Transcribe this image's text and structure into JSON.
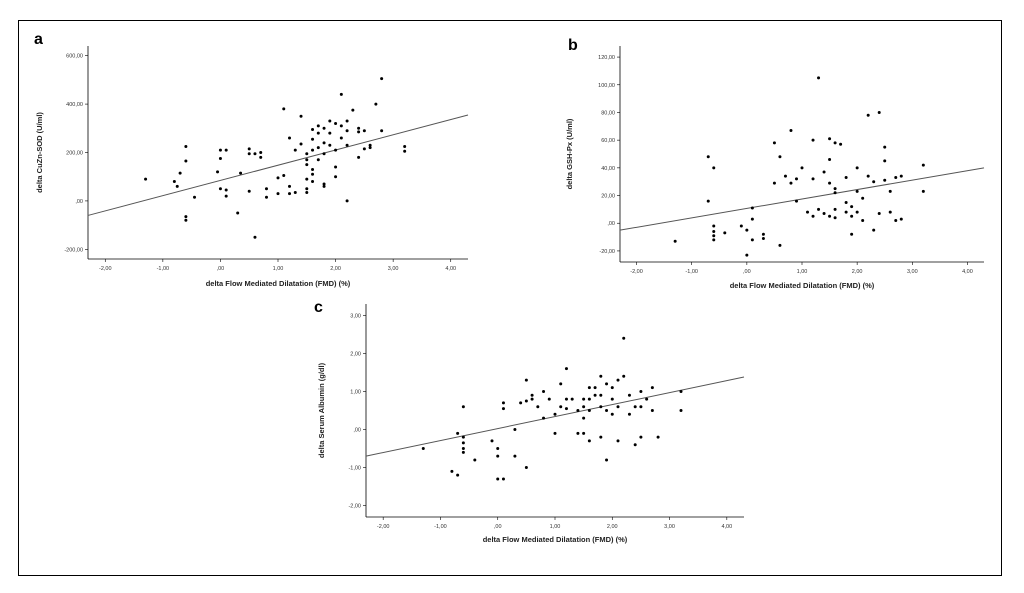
{
  "chart_data": [
    {
      "type": "scatter",
      "panel": "a",
      "xlabel": "delta Flow Mediated Dilatation (FMD) (%)",
      "ylabel": "delta CuZn-SOD (U/ml)",
      "xlim": [
        -2.3,
        4.3
      ],
      "ylim": [
        -240,
        640
      ],
      "xticks": [
        -2,
        -1,
        0,
        1,
        2,
        3,
        4
      ],
      "xtick_labels": [
        "-2,00",
        "-1,00",
        ",00",
        "1,00",
        "2,00",
        "3,00",
        "4,00"
      ],
      "yticks": [
        -200,
        0,
        200,
        400,
        600
      ],
      "ytick_labels": [
        "-200,00",
        ",00",
        "200,00",
        "400,00",
        "600,00"
      ],
      "fit_line": [
        [
          -2.3,
          -60
        ],
        [
          4.3,
          355
        ]
      ],
      "points": [
        [
          -1.3,
          90
        ],
        [
          -0.8,
          80
        ],
        [
          -0.75,
          60
        ],
        [
          -0.7,
          115
        ],
        [
          -0.6,
          225
        ],
        [
          -0.6,
          165
        ],
        [
          -0.6,
          -65
        ],
        [
          -0.6,
          -80
        ],
        [
          -0.45,
          15
        ],
        [
          -0.05,
          120
        ],
        [
          0,
          210
        ],
        [
          0,
          175
        ],
        [
          0,
          50
        ],
        [
          0.1,
          210
        ],
        [
          0.1,
          45
        ],
        [
          0.1,
          20
        ],
        [
          0.3,
          -50
        ],
        [
          0.35,
          115
        ],
        [
          0.5,
          215
        ],
        [
          0.5,
          195
        ],
        [
          0.5,
          40
        ],
        [
          0.6,
          195
        ],
        [
          0.6,
          -150
        ],
        [
          0.7,
          180
        ],
        [
          0.7,
          200
        ],
        [
          0.8,
          50
        ],
        [
          0.8,
          15
        ],
        [
          1.0,
          95
        ],
        [
          1.0,
          30
        ],
        [
          1.1,
          380
        ],
        [
          1.1,
          105
        ],
        [
          1.2,
          260
        ],
        [
          1.2,
          60
        ],
        [
          1.2,
          30
        ],
        [
          1.3,
          210
        ],
        [
          1.3,
          35
        ],
        [
          1.4,
          350
        ],
        [
          1.4,
          235
        ],
        [
          1.5,
          195
        ],
        [
          1.5,
          170
        ],
        [
          1.5,
          150
        ],
        [
          1.5,
          90
        ],
        [
          1.5,
          50
        ],
        [
          1.5,
          35
        ],
        [
          1.6,
          295
        ],
        [
          1.6,
          255
        ],
        [
          1.6,
          210
        ],
        [
          1.6,
          130
        ],
        [
          1.6,
          110
        ],
        [
          1.6,
          80
        ],
        [
          1.7,
          310
        ],
        [
          1.7,
          280
        ],
        [
          1.7,
          220
        ],
        [
          1.7,
          170
        ],
        [
          1.8,
          300
        ],
        [
          1.8,
          240
        ],
        [
          1.8,
          195
        ],
        [
          1.8,
          70
        ],
        [
          1.8,
          60
        ],
        [
          1.9,
          330
        ],
        [
          1.9,
          280
        ],
        [
          1.9,
          230
        ],
        [
          2.0,
          320
        ],
        [
          2.0,
          210
        ],
        [
          2.0,
          140
        ],
        [
          2.0,
          100
        ],
        [
          2.1,
          440
        ],
        [
          2.1,
          310
        ],
        [
          2.1,
          260
        ],
        [
          2.2,
          330
        ],
        [
          2.2,
          290
        ],
        [
          2.2,
          230
        ],
        [
          2.2,
          0
        ],
        [
          2.3,
          375
        ],
        [
          2.4,
          300
        ],
        [
          2.4,
          285
        ],
        [
          2.4,
          180
        ],
        [
          2.5,
          290
        ],
        [
          2.5,
          215
        ],
        [
          2.6,
          230
        ],
        [
          2.6,
          220
        ],
        [
          2.7,
          400
        ],
        [
          2.8,
          505
        ],
        [
          2.8,
          290
        ],
        [
          3.2,
          225
        ],
        [
          3.2,
          205
        ]
      ]
    },
    {
      "type": "scatter",
      "panel": "b",
      "xlabel": "delta Flow Mediated Dilatation (FMD) (%)",
      "ylabel": "delta GSH-Px (U/ml)",
      "xlim": [
        -2.3,
        4.3
      ],
      "ylim": [
        -28,
        128
      ],
      "xticks": [
        -2,
        -1,
        0,
        1,
        2,
        3,
        4
      ],
      "xtick_labels": [
        "-2,00",
        "-1,00",
        ",00",
        "1,00",
        "2,00",
        "3,00",
        "4,00"
      ],
      "yticks": [
        -20,
        0,
        20,
        40,
        60,
        80,
        100,
        120
      ],
      "ytick_labels": [
        "-20,00",
        ",00",
        "20,00",
        "40,00",
        "60,00",
        "80,00",
        "100,00",
        "120,00"
      ],
      "fit_line": [
        [
          -2.3,
          -5
        ],
        [
          4.3,
          40
        ]
      ],
      "points": [
        [
          -1.3,
          -13
        ],
        [
          -0.7,
          48
        ],
        [
          -0.6,
          40
        ],
        [
          -0.7,
          16
        ],
        [
          -0.6,
          -2
        ],
        [
          -0.6,
          -6
        ],
        [
          -0.6,
          -9
        ],
        [
          -0.6,
          -12
        ],
        [
          -0.4,
          -7
        ],
        [
          -0.1,
          -2
        ],
        [
          0,
          -5
        ],
        [
          0,
          -23
        ],
        [
          0.1,
          11
        ],
        [
          0.1,
          3
        ],
        [
          0.1,
          -12
        ],
        [
          0.3,
          -8
        ],
        [
          0.3,
          -11
        ],
        [
          0.5,
          58
        ],
        [
          0.5,
          29
        ],
        [
          0.6,
          48
        ],
        [
          0.6,
          -16
        ],
        [
          0.7,
          34
        ],
        [
          0.8,
          67
        ],
        [
          0.8,
          29
        ],
        [
          0.9,
          32
        ],
        [
          0.9,
          16
        ],
        [
          1.0,
          40
        ],
        [
          1.1,
          8
        ],
        [
          1.2,
          60
        ],
        [
          1.2,
          32
        ],
        [
          1.2,
          5
        ],
        [
          1.3,
          105
        ],
        [
          1.3,
          10
        ],
        [
          1.4,
          37
        ],
        [
          1.4,
          7
        ],
        [
          1.5,
          61
        ],
        [
          1.5,
          46
        ],
        [
          1.5,
          29
        ],
        [
          1.5,
          5
        ],
        [
          1.6,
          58
        ],
        [
          1.6,
          25
        ],
        [
          1.6,
          22
        ],
        [
          1.6,
          10
        ],
        [
          1.6,
          4
        ],
        [
          1.7,
          57
        ],
        [
          1.8,
          33
        ],
        [
          1.8,
          15
        ],
        [
          1.8,
          8
        ],
        [
          1.9,
          12
        ],
        [
          1.9,
          5
        ],
        [
          1.9,
          -8
        ],
        [
          2.0,
          40
        ],
        [
          2.0,
          23
        ],
        [
          2.0,
          8
        ],
        [
          2.1,
          18
        ],
        [
          2.1,
          2
        ],
        [
          2.2,
          78
        ],
        [
          2.2,
          34
        ],
        [
          2.3,
          30
        ],
        [
          2.3,
          -5
        ],
        [
          2.4,
          80
        ],
        [
          2.4,
          7
        ],
        [
          2.5,
          55
        ],
        [
          2.5,
          45
        ],
        [
          2.5,
          31
        ],
        [
          2.6,
          23
        ],
        [
          2.6,
          8
        ],
        [
          2.7,
          33
        ],
        [
          2.7,
          2
        ],
        [
          2.8,
          34
        ],
        [
          2.8,
          3
        ],
        [
          3.2,
          42
        ],
        [
          3.2,
          23
        ]
      ]
    },
    {
      "type": "scatter",
      "panel": "c",
      "xlabel": "delta Flow Mediated Dilatation (FMD) (%)",
      "ylabel": "delta Serum Albumin (g/dl)",
      "xlim": [
        -2.3,
        4.3
      ],
      "ylim": [
        -2.3,
        3.3
      ],
      "xticks": [
        -2,
        -1,
        0,
        1,
        2,
        3,
        4
      ],
      "xtick_labels": [
        "-2,00",
        "-1,00",
        ",00",
        "1,00",
        "2,00",
        "3,00",
        "4,00"
      ],
      "yticks": [
        -2,
        -1,
        0,
        1,
        2,
        3
      ],
      "ytick_labels": [
        "-2,00",
        "-1,00",
        ",00",
        "1,00",
        "2,00",
        "3,00"
      ],
      "fit_line": [
        [
          -2.3,
          -0.7
        ],
        [
          4.3,
          1.38
        ]
      ],
      "points": [
        [
          -1.3,
          -0.5
        ],
        [
          -0.8,
          -1.1
        ],
        [
          -0.7,
          -1.2
        ],
        [
          -0.7,
          -0.1
        ],
        [
          -0.6,
          0.6
        ],
        [
          -0.6,
          -0.2
        ],
        [
          -0.6,
          -0.35
        ],
        [
          -0.6,
          -0.5
        ],
        [
          -0.6,
          -0.6
        ],
        [
          -0.4,
          -0.8
        ],
        [
          -0.1,
          -0.3
        ],
        [
          0,
          -0.5
        ],
        [
          0,
          -0.7
        ],
        [
          0,
          -1.3
        ],
        [
          0.1,
          0.7
        ],
        [
          0.1,
          0.55
        ],
        [
          0.1,
          -1.3
        ],
        [
          0.3,
          0.0
        ],
        [
          0.3,
          -0.7
        ],
        [
          0.4,
          0.7
        ],
        [
          0.5,
          1.3
        ],
        [
          0.5,
          0.75
        ],
        [
          0.5,
          -1.0
        ],
        [
          0.6,
          0.8
        ],
        [
          0.6,
          0.9
        ],
        [
          0.7,
          0.6
        ],
        [
          0.8,
          1.0
        ],
        [
          0.8,
          0.3
        ],
        [
          0.9,
          0.8
        ],
        [
          1.0,
          0.4
        ],
        [
          1.0,
          -0.1
        ],
        [
          1.1,
          1.2
        ],
        [
          1.1,
          0.6
        ],
        [
          1.2,
          1.6
        ],
        [
          1.2,
          0.8
        ],
        [
          1.2,
          0.55
        ],
        [
          1.3,
          0.8
        ],
        [
          1.4,
          0.5
        ],
        [
          1.4,
          -0.1
        ],
        [
          1.5,
          0.8
        ],
        [
          1.5,
          0.6
        ],
        [
          1.5,
          0.3
        ],
        [
          1.5,
          -0.1
        ],
        [
          1.6,
          1.1
        ],
        [
          1.6,
          0.8
        ],
        [
          1.6,
          0.5
        ],
        [
          1.6,
          -0.3
        ],
        [
          1.7,
          1.1
        ],
        [
          1.7,
          0.9
        ],
        [
          1.8,
          1.4
        ],
        [
          1.8,
          0.9
        ],
        [
          1.8,
          0.6
        ],
        [
          1.8,
          -0.2
        ],
        [
          1.9,
          1.2
        ],
        [
          1.9,
          0.5
        ],
        [
          1.9,
          -0.8
        ],
        [
          2.0,
          1.1
        ],
        [
          2.0,
          0.8
        ],
        [
          2.0,
          0.4
        ],
        [
          2.1,
          1.3
        ],
        [
          2.1,
          0.6
        ],
        [
          2.1,
          -0.3
        ],
        [
          2.2,
          2.4
        ],
        [
          2.2,
          1.4
        ],
        [
          2.3,
          0.9
        ],
        [
          2.3,
          0.4
        ],
        [
          2.4,
          0.6
        ],
        [
          2.4,
          -0.4
        ],
        [
          2.5,
          1.0
        ],
        [
          2.5,
          0.6
        ],
        [
          2.5,
          -0.2
        ],
        [
          2.6,
          0.8
        ],
        [
          2.7,
          1.1
        ],
        [
          2.7,
          0.5
        ],
        [
          2.8,
          -0.2
        ],
        [
          3.2,
          1.0
        ],
        [
          3.2,
          0.5
        ]
      ]
    }
  ]
}
